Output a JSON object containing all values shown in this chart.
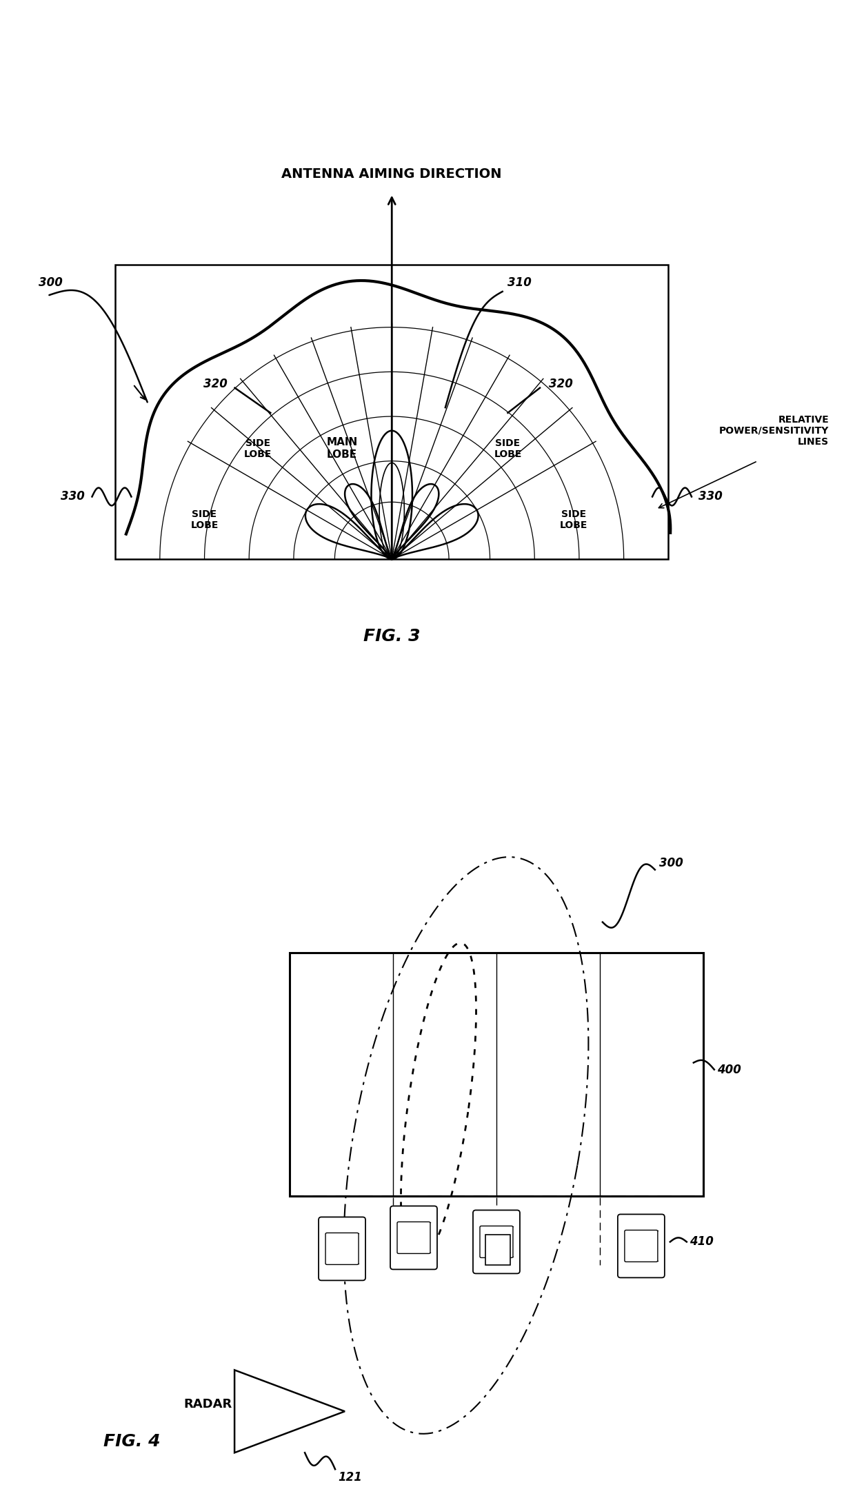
{
  "fig3": {
    "title": "FIG. 3",
    "antenna_label": "ANTENNA AIMING DIRECTION",
    "main_lobe_label": "MAIN\nLOBE",
    "relative_label": "RELATIVE\nPOWER/SENSITIVITY\nLINES",
    "ref_300": "300",
    "ref_310": "310",
    "ref_320_left": "320",
    "ref_320_right": "320",
    "ref_330_left": "330",
    "ref_330_right": "330"
  },
  "fig4": {
    "title": "FIG. 4",
    "radar_label": "RADAR",
    "ref_300": "300",
    "ref_400": "400",
    "ref_410": "410",
    "ref_121": "121"
  },
  "bg_color": "#ffffff",
  "line_color": "#000000",
  "fontsize_label": 13,
  "fontsize_ref": 12,
  "fontsize_title": 18
}
